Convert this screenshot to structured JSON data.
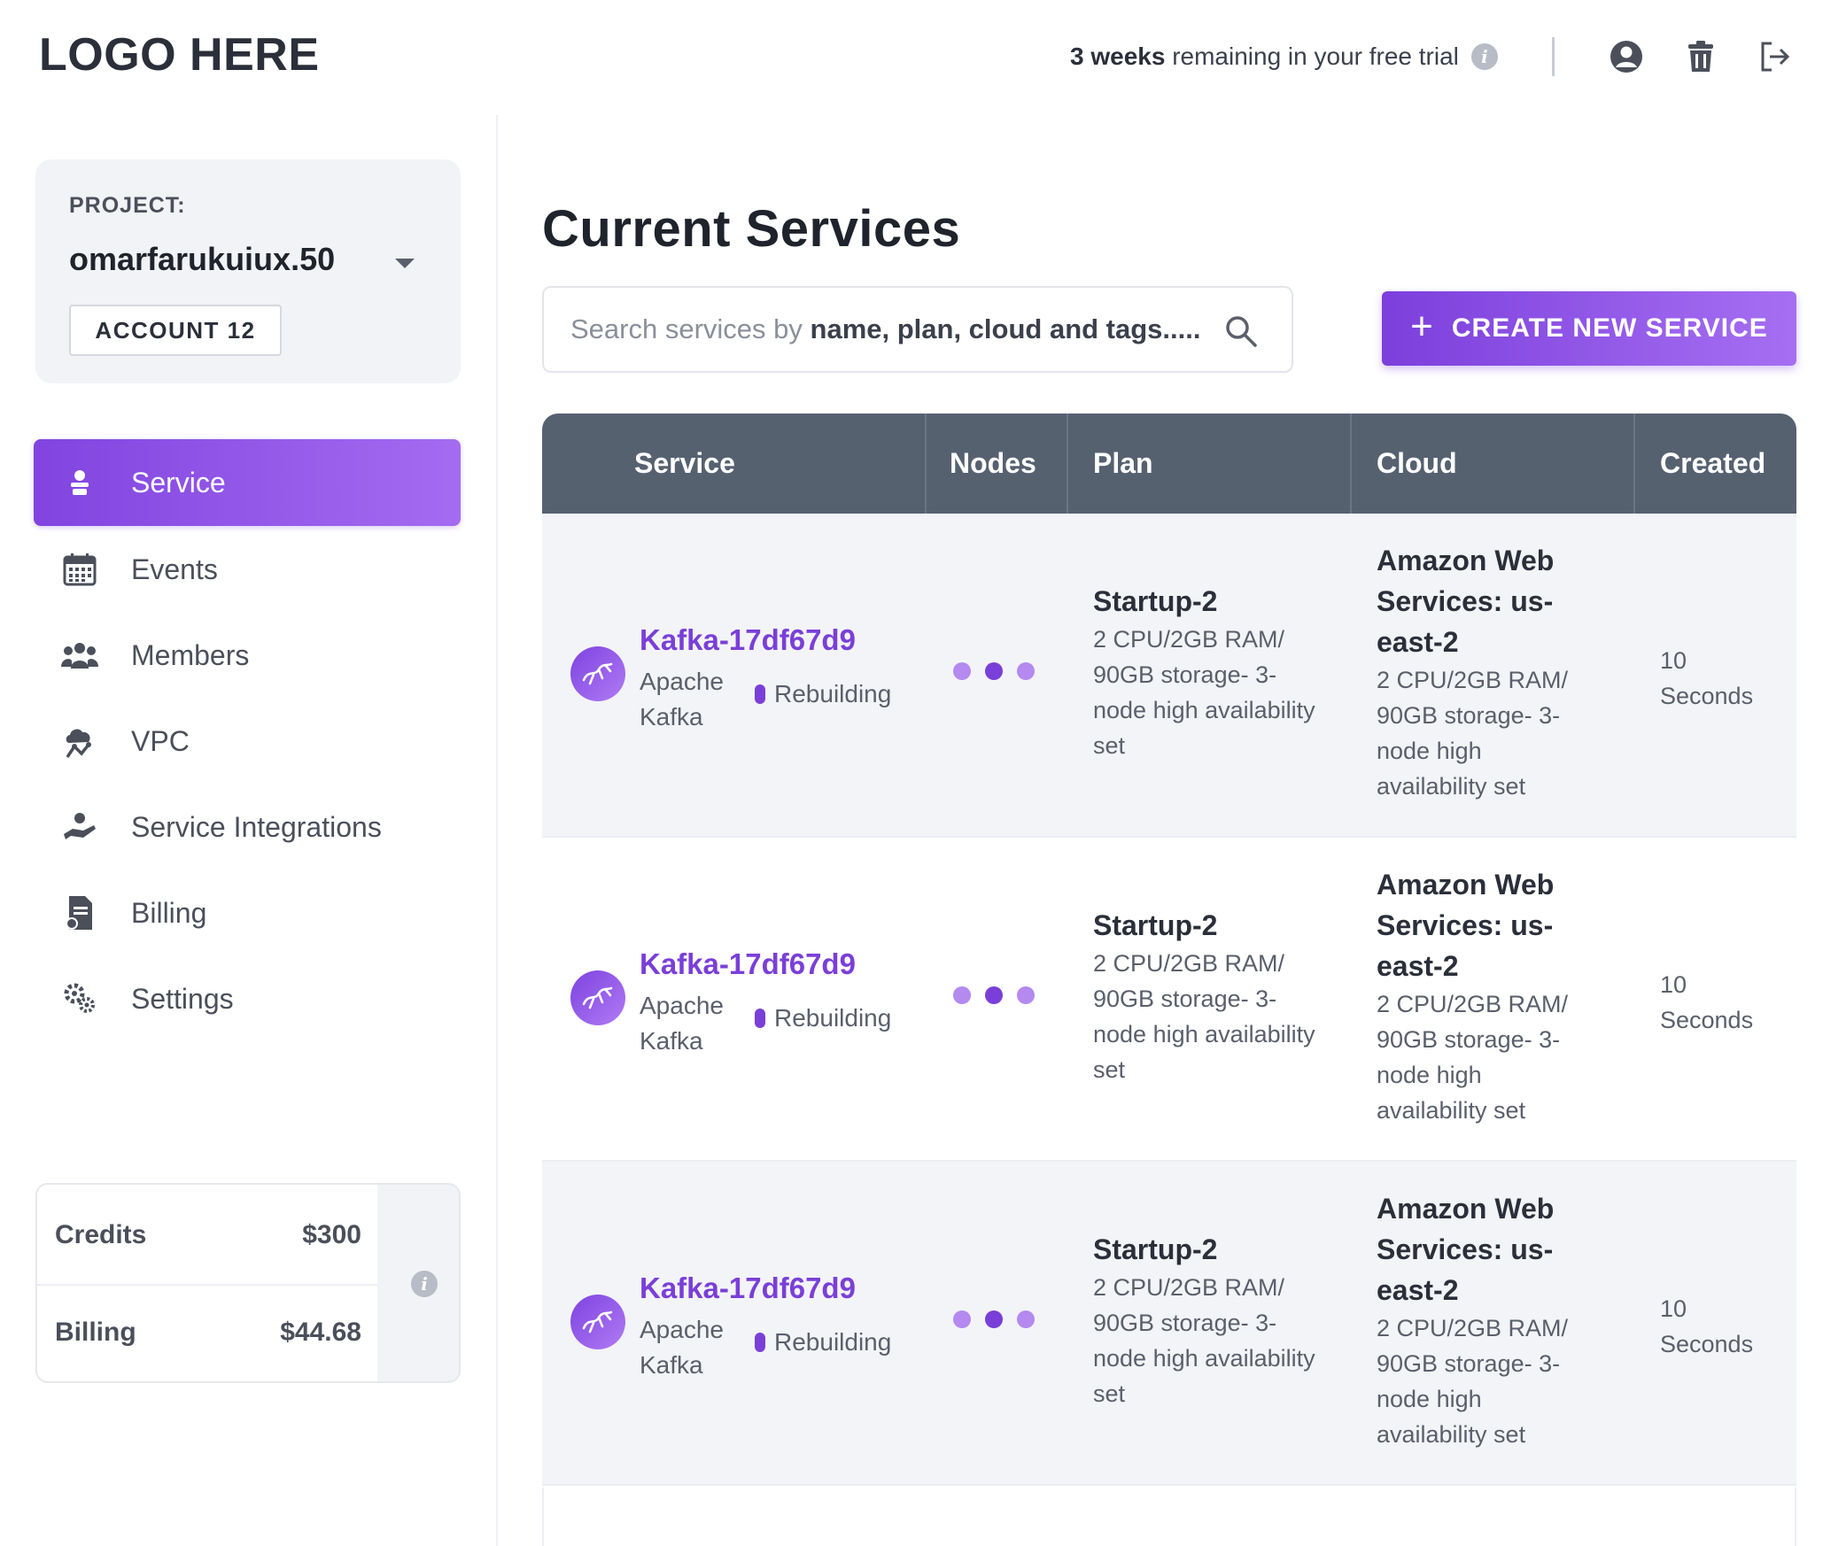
{
  "header": {
    "logo": "LOGO HERE",
    "trial_bold": "3 weeks",
    "trial_rest": "remaining in your free trial",
    "icons": [
      "info-icon",
      "user-icon",
      "trash-icon",
      "logout-icon"
    ]
  },
  "project": {
    "label": "PROJECT:",
    "name": "omarfarukuiux.50",
    "account": "ACCOUNT 12"
  },
  "sidebar": {
    "items": [
      {
        "label": "Service",
        "icon": "service-icon",
        "active": true
      },
      {
        "label": "Events",
        "icon": "calendar-icon",
        "active": false
      },
      {
        "label": "Members",
        "icon": "members-icon",
        "active": false
      },
      {
        "label": "VPC",
        "icon": "vpc-icon",
        "active": false
      },
      {
        "label": "Service Integrations",
        "icon": "integrations-icon",
        "active": false
      },
      {
        "label": "Billing",
        "icon": "billing-icon",
        "active": false
      },
      {
        "label": "Settings",
        "icon": "settings-icon",
        "active": false
      }
    ]
  },
  "balance": {
    "credits_label": "Credits",
    "credits_value": "$300",
    "billing_label": "Billing",
    "billing_value": "$44.68"
  },
  "main": {
    "title": "Current Services",
    "search_prefix": "Search services by",
    "search_bold": "name, plan, cloud and tags.....",
    "create_label": "CREATE NEW SERVICE"
  },
  "table": {
    "columns": [
      "Service",
      "Nodes",
      "Plan",
      "Cloud",
      "Created"
    ],
    "rows": [
      {
        "name": "Kafka-17df67d9",
        "type": "Apache Kafka",
        "status": "Rebuilding",
        "plan_title": "Startup-2",
        "plan_desc": "2 CPU/2GB RAM/ 90GB storage- 3-node high availability set",
        "cloud_title": "Amazon Web Services: us-east-2",
        "cloud_desc": "2 CPU/2GB RAM/ 90GB storage- 3-node high availability set",
        "created": "10 Seconds"
      },
      {
        "name": "Kafka-17df67d9",
        "type": "Apache Kafka",
        "status": "Rebuilding",
        "plan_title": "Startup-2",
        "plan_desc": "2 CPU/2GB RAM/ 90GB storage- 3-node high availability set",
        "cloud_title": "Amazon Web Services: us-east-2",
        "cloud_desc": "2 CPU/2GB RAM/ 90GB storage- 3-node high availability set",
        "created": "10 Seconds"
      },
      {
        "name": "Kafka-17df67d9",
        "type": "Apache Kafka",
        "status": "Rebuilding",
        "plan_title": "Startup-2",
        "plan_desc": "2 CPU/2GB RAM/ 90GB storage- 3-node high availability set",
        "cloud_title": "Amazon Web Services: us-east-2",
        "cloud_desc": "2 CPU/2GB RAM/ 90GB storage- 3-node high availability set",
        "created": "10 Seconds"
      }
    ]
  },
  "colors": {
    "accent": "#7a3fd8",
    "accent_light": "#a66ff2",
    "table_header": "#566170",
    "node_dot_dark": "#7a3fd8",
    "node_dot_light": "#b489f0"
  }
}
